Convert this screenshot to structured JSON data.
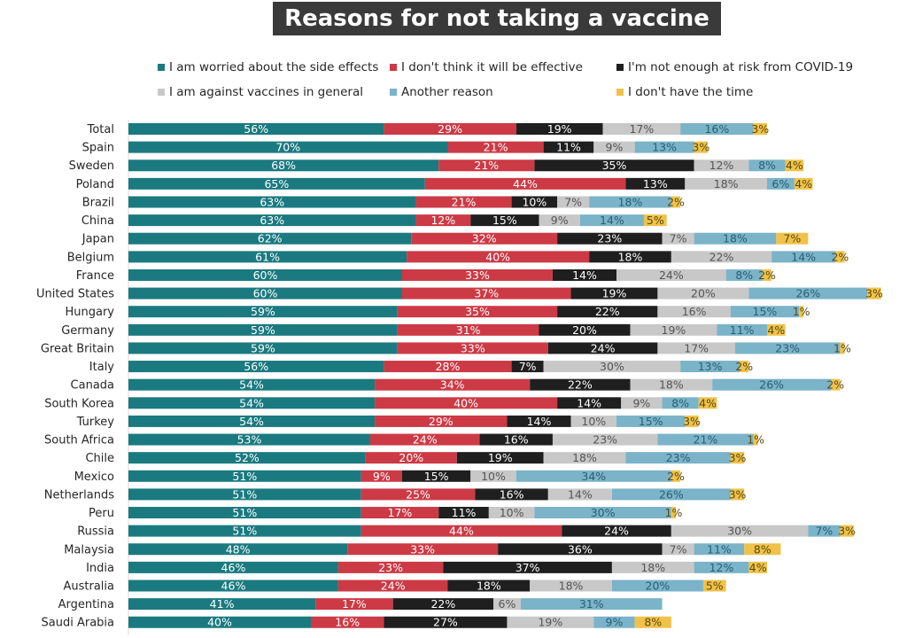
{
  "chart_data": {
    "type": "bar",
    "orientation": "horizontal",
    "stacked": true,
    "title": "Reasons for not taking a vaccine",
    "legend_position": "top",
    "grid": false,
    "categories": [
      "Total",
      "Spain",
      "Sweden",
      "Poland",
      "Brazil",
      "China",
      "Japan",
      "Belgium",
      "France",
      "United States",
      "Hungary",
      "Germany",
      "Great Britain",
      "Italy",
      "Canada",
      "South Korea",
      "Turkey",
      "South Africa",
      "Chile",
      "Mexico",
      "Netherlands",
      "Peru",
      "Russia",
      "Malaysia",
      "India",
      "Australia",
      "Argentina",
      "Saudi Arabia"
    ],
    "series": [
      {
        "name": "I am worried about the side effects",
        "color": "#1a7a80",
        "label_color": "#ffffff",
        "values": [
          56,
          70,
          68,
          65,
          63,
          63,
          62,
          61,
          60,
          60,
          59,
          59,
          59,
          56,
          54,
          54,
          54,
          53,
          52,
          51,
          51,
          51,
          51,
          48,
          46,
          46,
          41,
          40
        ]
      },
      {
        "name": "I don't think it will be effective",
        "color": "#cc3a45",
        "label_color": "#ffffff",
        "values": [
          29,
          21,
          21,
          44,
          21,
          12,
          32,
          40,
          33,
          37,
          35,
          31,
          33,
          28,
          34,
          40,
          29,
          24,
          20,
          9,
          25,
          17,
          44,
          33,
          23,
          24,
          17,
          16
        ]
      },
      {
        "name": "I'm not enough at risk from COVID-19",
        "color": "#1f1f1f",
        "label_color": "#ffffff",
        "values": [
          19,
          11,
          35,
          13,
          10,
          15,
          23,
          18,
          14,
          19,
          22,
          20,
          24,
          7,
          22,
          14,
          14,
          16,
          19,
          15,
          16,
          11,
          24,
          36,
          37,
          18,
          22,
          27
        ]
      },
      {
        "name": "I am against vaccines in general",
        "color": "#c8c8c8",
        "label_color": "#555555",
        "values": [
          17,
          9,
          12,
          18,
          7,
          9,
          7,
          22,
          24,
          20,
          16,
          19,
          17,
          30,
          18,
          9,
          10,
          23,
          18,
          10,
          14,
          10,
          30,
          7,
          18,
          18,
          6,
          19
        ]
      },
      {
        "name": "Another reason",
        "color": "#7bb3c8",
        "label_color": "#2a5f73",
        "values": [
          16,
          13,
          8,
          6,
          18,
          14,
          18,
          14,
          8,
          26,
          15,
          11,
          23,
          13,
          26,
          8,
          15,
          21,
          23,
          34,
          26,
          30,
          7,
          11,
          12,
          20,
          31,
          9
        ]
      },
      {
        "name": "I don't have the time",
        "color": "#f0c24a",
        "label_color": "#5a4a10",
        "values": [
          3,
          3,
          4,
          4,
          2,
          5,
          7,
          2,
          2,
          3,
          1,
          4,
          1,
          2,
          2,
          4,
          3,
          1,
          3,
          2,
          3,
          1,
          3,
          8,
          4,
          5,
          0,
          8
        ]
      }
    ],
    "value_suffix": "%"
  }
}
